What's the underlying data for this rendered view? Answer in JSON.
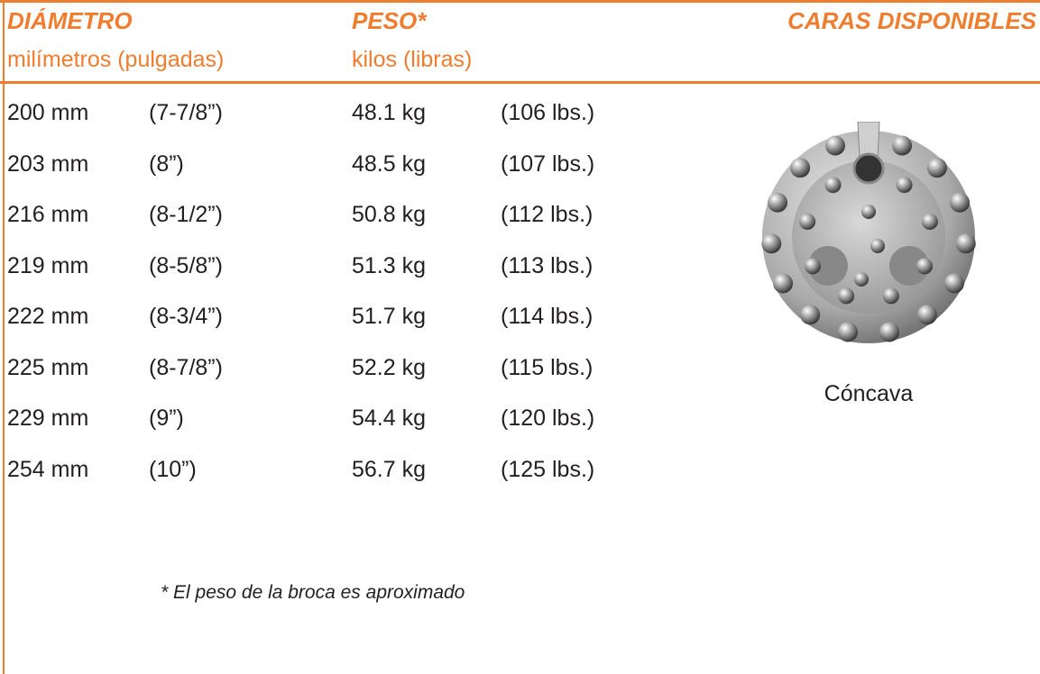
{
  "header": {
    "diameter_title": "DIÁMETRO",
    "diameter_units": "milímetros (pulgadas)",
    "weight_title": "PESO*",
    "weight_units": "kilos (libras)",
    "faces_title": "CARAS DISPONIBLES"
  },
  "table": {
    "rows": [
      [
        "200 mm",
        "(7-7/8”)",
        "48.1 kg",
        "(106 lbs.)"
      ],
      [
        "203 mm",
        "(8”)",
        "48.5 kg",
        "(107 lbs.)"
      ],
      [
        "216 mm",
        "(8-1/2”)",
        "50.8 kg",
        "(112 lbs.)"
      ],
      [
        "219 mm",
        "(8-5/8”)",
        "51.3 kg",
        "(113 lbs.)"
      ],
      [
        "222 mm",
        "(8-3/4”)",
        "51.7 kg",
        "(114 lbs.)"
      ],
      [
        "225 mm",
        "(8-7/8”)",
        "52.2 kg",
        "(115 lbs.)"
      ],
      [
        "229 mm",
        "(9”)",
        "54.4 kg",
        "(120 lbs.)"
      ],
      [
        "254 mm",
        "(10”)",
        "56.7 kg",
        "(125 lbs.)"
      ]
    ]
  },
  "footnote": "* El peso de la broca es aproximado",
  "face": {
    "caption": "Cóncava"
  }
}
